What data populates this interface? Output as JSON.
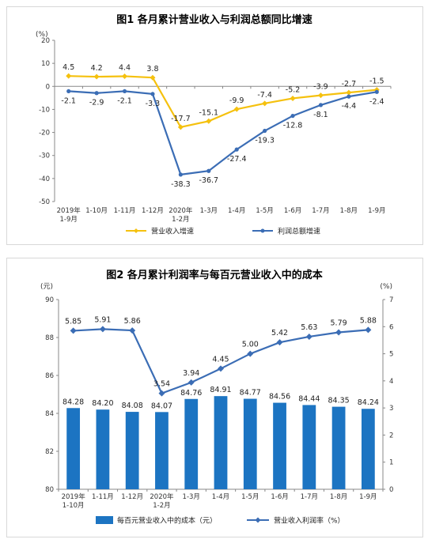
{
  "chart_data": [
    {
      "type": "line",
      "title": "图1  各月累计营业收入与利润总额同比增速",
      "y_unit": "(%)",
      "ylim": [
        -50,
        20
      ],
      "yticks": [
        20,
        10,
        0,
        -10,
        -20,
        -30,
        -40,
        -50
      ],
      "categories": [
        "2019年\n1-9月",
        "1-10月",
        "1-11月",
        "1-12月",
        "2020年\n1-2月",
        "1-3月",
        "1-4月",
        "1-5月",
        "1-6月",
        "1-7月",
        "1-8月",
        "1-9月"
      ],
      "series": [
        {
          "name": "营业收入增速",
          "color": "#f5c10e",
          "values": [
            4.5,
            4.2,
            4.4,
            3.8,
            -17.7,
            -15.1,
            -9.9,
            -7.4,
            -5.2,
            -3.9,
            -2.7,
            -1.5
          ],
          "labels": [
            "4.5",
            "4.2",
            "4.4",
            "3.8",
            "-17.7",
            "-15.1",
            "-9.9",
            "-7.4",
            "-5.2",
            "-3.9",
            "-2.7",
            "-1.5"
          ]
        },
        {
          "name": "利润总额增速",
          "color": "#3b6db5",
          "values": [
            -2.1,
            -2.9,
            -2.1,
            -3.3,
            -38.3,
            -36.7,
            -27.4,
            -19.3,
            -12.8,
            -8.1,
            -4.4,
            -2.4
          ],
          "labels": [
            "-2.1",
            "-2.9",
            "-2.1",
            "-3.3",
            "-38.3",
            "-36.7",
            "-27.4",
            "-19.3",
            "-12.8",
            "-8.1",
            "-4.4",
            "-2.4"
          ]
        }
      ],
      "legend_position": "bottom",
      "grid": false
    },
    {
      "type": "bar",
      "title": "图2  各月累计利润率与每百元营业收入中的成本",
      "y_unit_left": "(元)",
      "y_unit_right": "(%)",
      "ylim_left": [
        80,
        90
      ],
      "yticks_left": [
        90,
        88,
        86,
        84,
        82,
        80
      ],
      "ylim_right": [
        0,
        7
      ],
      "yticks_right": [
        7,
        6,
        5,
        4,
        3,
        2,
        1,
        0
      ],
      "categories": [
        "2019年\n1-10月",
        "1-11月",
        "1-12月",
        "2020年\n1-2月",
        "1-3月",
        "1-4月",
        "1-5月",
        "1-6月",
        "1-7月",
        "1-8月",
        "1-9月"
      ],
      "bar_series": {
        "name": "每百元营业收入中的成本（元）",
        "color": "#1c74c2",
        "values": [
          84.28,
          84.2,
          84.08,
          84.07,
          84.76,
          84.91,
          84.77,
          84.56,
          84.44,
          84.35,
          84.24
        ],
        "labels": [
          "84.28",
          "84.20",
          "84.08",
          "84.07",
          "84.76",
          "84.91",
          "84.77",
          "84.56",
          "84.44",
          "84.35",
          "84.24"
        ]
      },
      "line_series": {
        "name": "营业收入利润率（%）",
        "color": "#3b6db5",
        "values": [
          5.85,
          5.91,
          5.86,
          3.54,
          3.94,
          4.45,
          5.0,
          5.42,
          5.63,
          5.79,
          5.88
        ],
        "labels": [
          "5.85",
          "5.91",
          "5.86",
          "3.54",
          "3.94",
          "4.45",
          "5.00",
          "5.42",
          "5.63",
          "5.79",
          "5.88"
        ]
      },
      "legend_position": "bottom",
      "grid": false
    }
  ]
}
